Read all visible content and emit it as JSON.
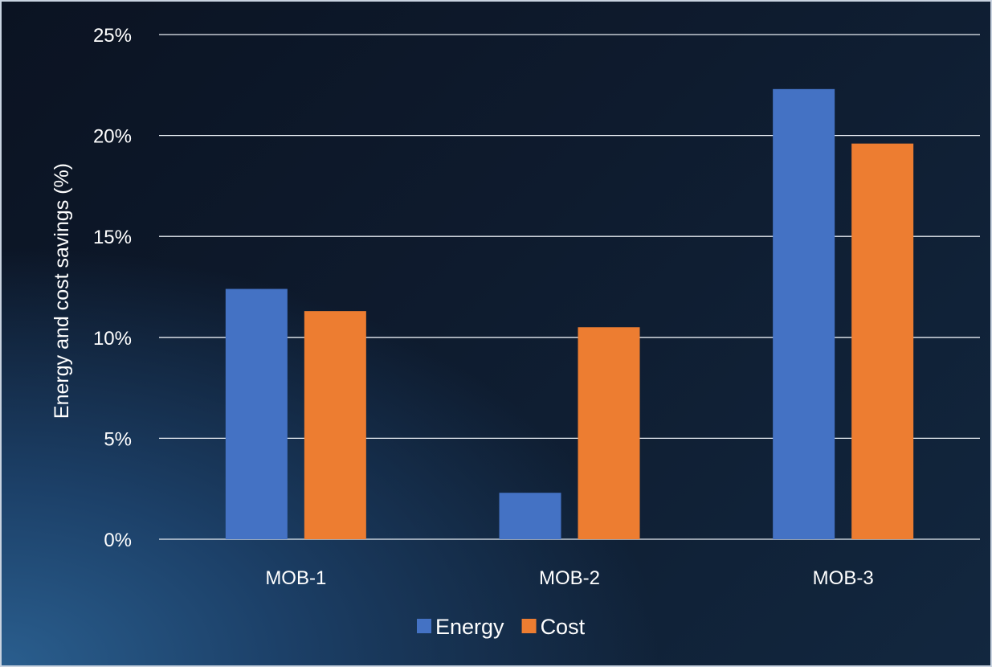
{
  "chart_data": {
    "type": "bar",
    "categories": [
      "MOB-1",
      "MOB-2",
      "MOB-3"
    ],
    "series": [
      {
        "name": "Energy",
        "values": [
          12.4,
          2.3,
          22.3
        ],
        "color": "#4472c4"
      },
      {
        "name": "Cost",
        "values": [
          11.3,
          10.5,
          19.6
        ],
        "color": "#ed7d31"
      }
    ],
    "ylabel": "Energy and cost savings (%)",
    "ylim": [
      0,
      25
    ],
    "yticks": [
      "0%",
      "5%",
      "10%",
      "15%",
      "20%",
      "25%"
    ],
    "grid": true,
    "legend": "bottom-center"
  }
}
